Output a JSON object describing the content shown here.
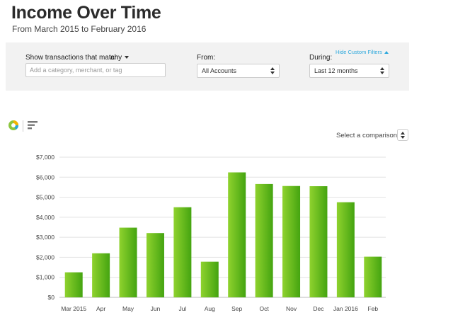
{
  "header": {
    "title": "Income Over Time",
    "subtitle": "From March 2015 to February 2016"
  },
  "filters": {
    "match_label": "Show transactions that match",
    "match_value": "any",
    "search_placeholder": "Add a category, merchant, or tag",
    "from_label": "From:",
    "from_value": "All Accounts",
    "during_label": "During:",
    "during_value": "Last 12 months",
    "hide_link": "Hide Custom Filters"
  },
  "toolbar": {
    "donut_icon": "donut-chart-icon",
    "bar_icon": "bar-chart-icon",
    "compare_label": "Select a comparison"
  },
  "colors": {
    "bar_light": "#8fd22e",
    "bar_dark": "#44a410",
    "link": "#2aa7dc"
  },
  "chart_data": {
    "type": "bar",
    "categories": [
      "Mar 2015",
      "Apr",
      "May",
      "Jun",
      "Jul",
      "Aug",
      "Sep",
      "Oct",
      "Nov",
      "Dec",
      "Jan 2016",
      "Feb"
    ],
    "values": [
      1250,
      2200,
      3480,
      3210,
      4500,
      1780,
      6240,
      5660,
      5560,
      5550,
      4750,
      2030
    ],
    "yticks": [
      "$0",
      "$1,000",
      "$2,000",
      "$3,000",
      "$4,000",
      "$5,000",
      "$6,000",
      "$7,000"
    ],
    "ylim": [
      0,
      7000
    ],
    "grid": true
  }
}
